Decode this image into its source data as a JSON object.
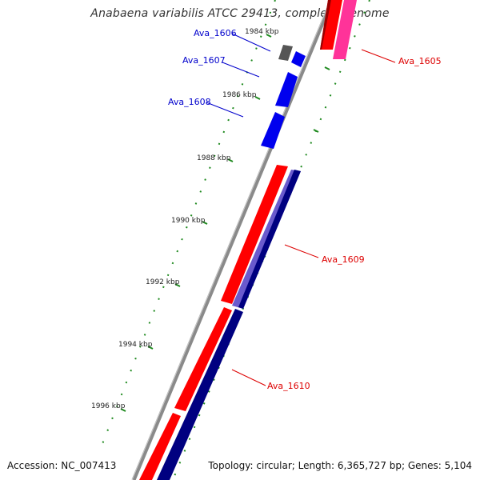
{
  "title": "Anabaena variabilis ATCC 29413, complete genome",
  "accession": "Accession: NC_007413",
  "summary": "Topology: circular; Length: 6,365,727 bp; Genes: 5,104",
  "colors": {
    "backbone": "#8a8a8a",
    "forward_cds": "#ff0000",
    "forward_cds_alt": "#ff3399",
    "reverse_cds": "#000080",
    "reverse_cds_alt": "#6a5acd",
    "small_gene": "#0000ee",
    "pseudo_gene": "#555555",
    "tick": "#1f8a1f",
    "label_blue": "#0000cc",
    "label_red": "#dd0000"
  },
  "ticks": [
    {
      "label": "1984 kbp"
    },
    {
      "label": "1986 kbp"
    },
    {
      "label": "1988 kbp"
    },
    {
      "label": "1990 kbp"
    },
    {
      "label": "1992 kbp"
    },
    {
      "label": "1994 kbp"
    },
    {
      "label": "1996 kbp"
    }
  ],
  "genes": [
    {
      "name": "Ava_1605",
      "label_color": "#dd0000"
    },
    {
      "name": "Ava_1606",
      "label_color": "#0000cc"
    },
    {
      "name": "Ava_1607",
      "label_color": "#0000cc"
    },
    {
      "name": "Ava_1608",
      "label_color": "#0000cc"
    },
    {
      "name": "Ava_1609",
      "label_color": "#dd0000"
    },
    {
      "name": "Ava_1610",
      "label_color": "#dd0000"
    }
  ]
}
